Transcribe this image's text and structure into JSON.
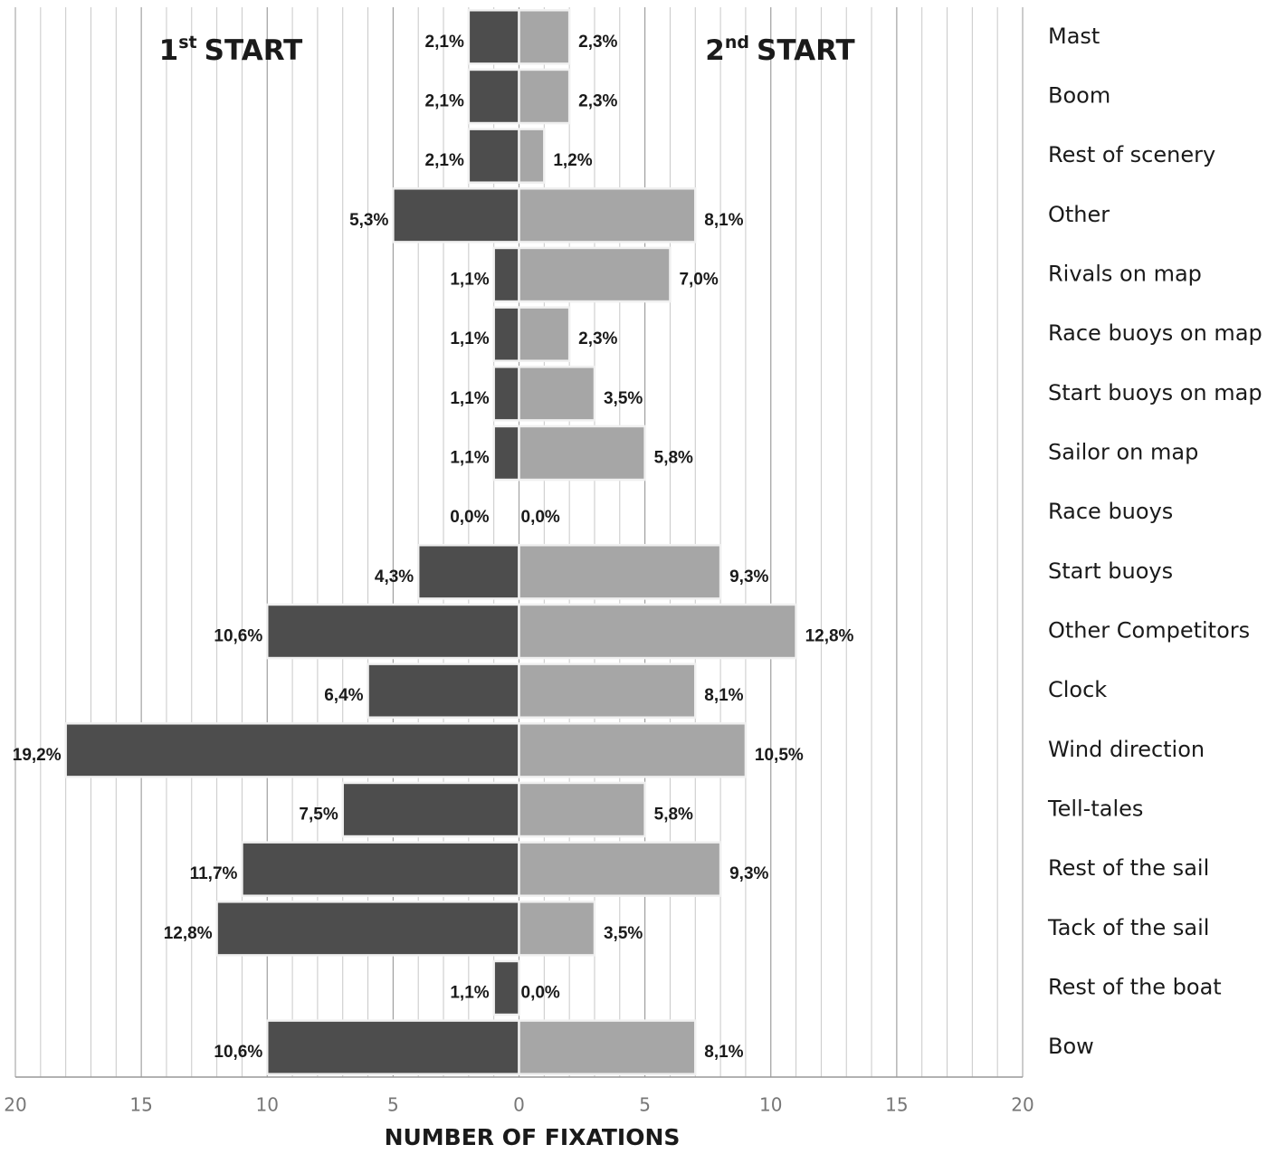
{
  "chart_data": {
    "type": "butterfly-bar",
    "x_label": "NUMBER OF FIXATIONS",
    "categories": [
      "Mast",
      "Boom",
      "Rest of scenery",
      "Other",
      "Rivals on map",
      "Race buoys on map",
      "Start buoys on map",
      "Sailor on map",
      "Race buoys",
      "Start buoys",
      "Other Competitors",
      "Clock",
      "Wind direction",
      "Tell-tales",
      "Rest of the sail",
      "Tack of the sail",
      "Rest of the boat",
      "Bow"
    ],
    "series": [
      {
        "name_parts": [
          "1",
          "st",
          "START"
        ],
        "color": "#4d4d4d",
        "values": [
          -2,
          -2,
          -2,
          -5,
          -1,
          -1,
          -1,
          -1,
          0,
          -4,
          -10,
          -6,
          -18,
          -7,
          -11,
          -12,
          -1,
          -10
        ],
        "percentages": [
          2.1,
          2.1,
          2.1,
          5.3,
          1.1,
          1.1,
          1.1,
          1.1,
          0.0,
          4.3,
          10.6,
          6.4,
          19.2,
          7.5,
          11.7,
          12.8,
          1.1,
          10.6
        ],
        "percentage_labels": [
          "2,1%",
          "2,1%",
          "2,1%",
          "5,3%",
          "1,1%",
          "1,1%",
          "1,1%",
          "1,1%",
          "0,0%",
          "4,3%",
          "10,6%",
          "6,4%",
          "19,2%",
          "7,5%",
          "11,7%",
          "12,8%",
          "1,1%",
          "10,6%"
        ]
      },
      {
        "name_parts": [
          "2",
          "nd",
          "START"
        ],
        "color": "#a6a6a6",
        "values": [
          2,
          2,
          1,
          7,
          6,
          2,
          3,
          5,
          0,
          8,
          11,
          7,
          9,
          5,
          8,
          3,
          0,
          7
        ],
        "percentages": [
          2.3,
          2.3,
          1.2,
          8.1,
          7.0,
          2.3,
          3.5,
          5.8,
          0.0,
          9.3,
          12.8,
          8.1,
          10.5,
          5.8,
          9.3,
          3.5,
          0.0,
          8.1
        ],
        "percentage_labels": [
          "2,3%",
          "2,3%",
          "1,2%",
          "8,1%",
          "7,0%",
          "2,3%",
          "3,5%",
          "5,8%",
          "0,0%",
          "9,3%",
          "12,8%",
          "8,1%",
          "10,5%",
          "5,8%",
          "9,3%",
          "3,5%",
          "0,0%",
          "8,1%"
        ]
      }
    ],
    "xlim": [
      -20,
      20
    ],
    "xticks": [
      {
        "value": -20,
        "label": "20"
      },
      {
        "value": -15,
        "label": "15"
      },
      {
        "value": -10,
        "label": "10"
      },
      {
        "value": -5,
        "label": "5"
      },
      0,
      5,
      10,
      15,
      20
    ],
    "grid": true,
    "minor_grid_step": 1
  }
}
